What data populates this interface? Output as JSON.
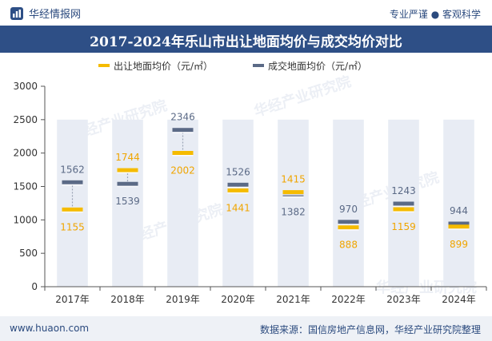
{
  "header": {
    "brand_name": "华经情报网",
    "slogan": "专业严谨 ● 客观科学"
  },
  "footer": {
    "website": "www.huaon.com",
    "source": "数据来源：国信房地产信息网，华经产业研究院整理"
  },
  "watermark": "华经产业研究院",
  "colors": {
    "title_bg": "#2e4f86",
    "series_transfer": "#f5bb00",
    "series_deal": "#5b6a86",
    "column_bg": "#e8ecf4",
    "label_transfer": "#f0a500",
    "label_deal": "#5b6a86"
  },
  "chart_data": {
    "type": "line",
    "title": "2017-2024年乐山市出让地面均价与成交均价对比",
    "categories": [
      "2017年",
      "2018年",
      "2019年",
      "2020年",
      "2021年",
      "2022年",
      "2023年",
      "2024年"
    ],
    "series": [
      {
        "name": "出让地面均价（元/㎡）",
        "values": [
          1155,
          1744,
          2002,
          1441,
          1415,
          888,
          1159,
          899
        ]
      },
      {
        "name": "成交地面均价（元/㎡）",
        "values": [
          1562,
          1539,
          2346,
          1526,
          1382,
          970,
          1243,
          944
        ]
      }
    ],
    "ylim": [
      0,
      3000
    ],
    "yticks": [
      0,
      500,
      1000,
      1500,
      2000,
      2500,
      3000
    ],
    "column_value": 2500,
    "legend_position": "top-left",
    "grid": false
  }
}
